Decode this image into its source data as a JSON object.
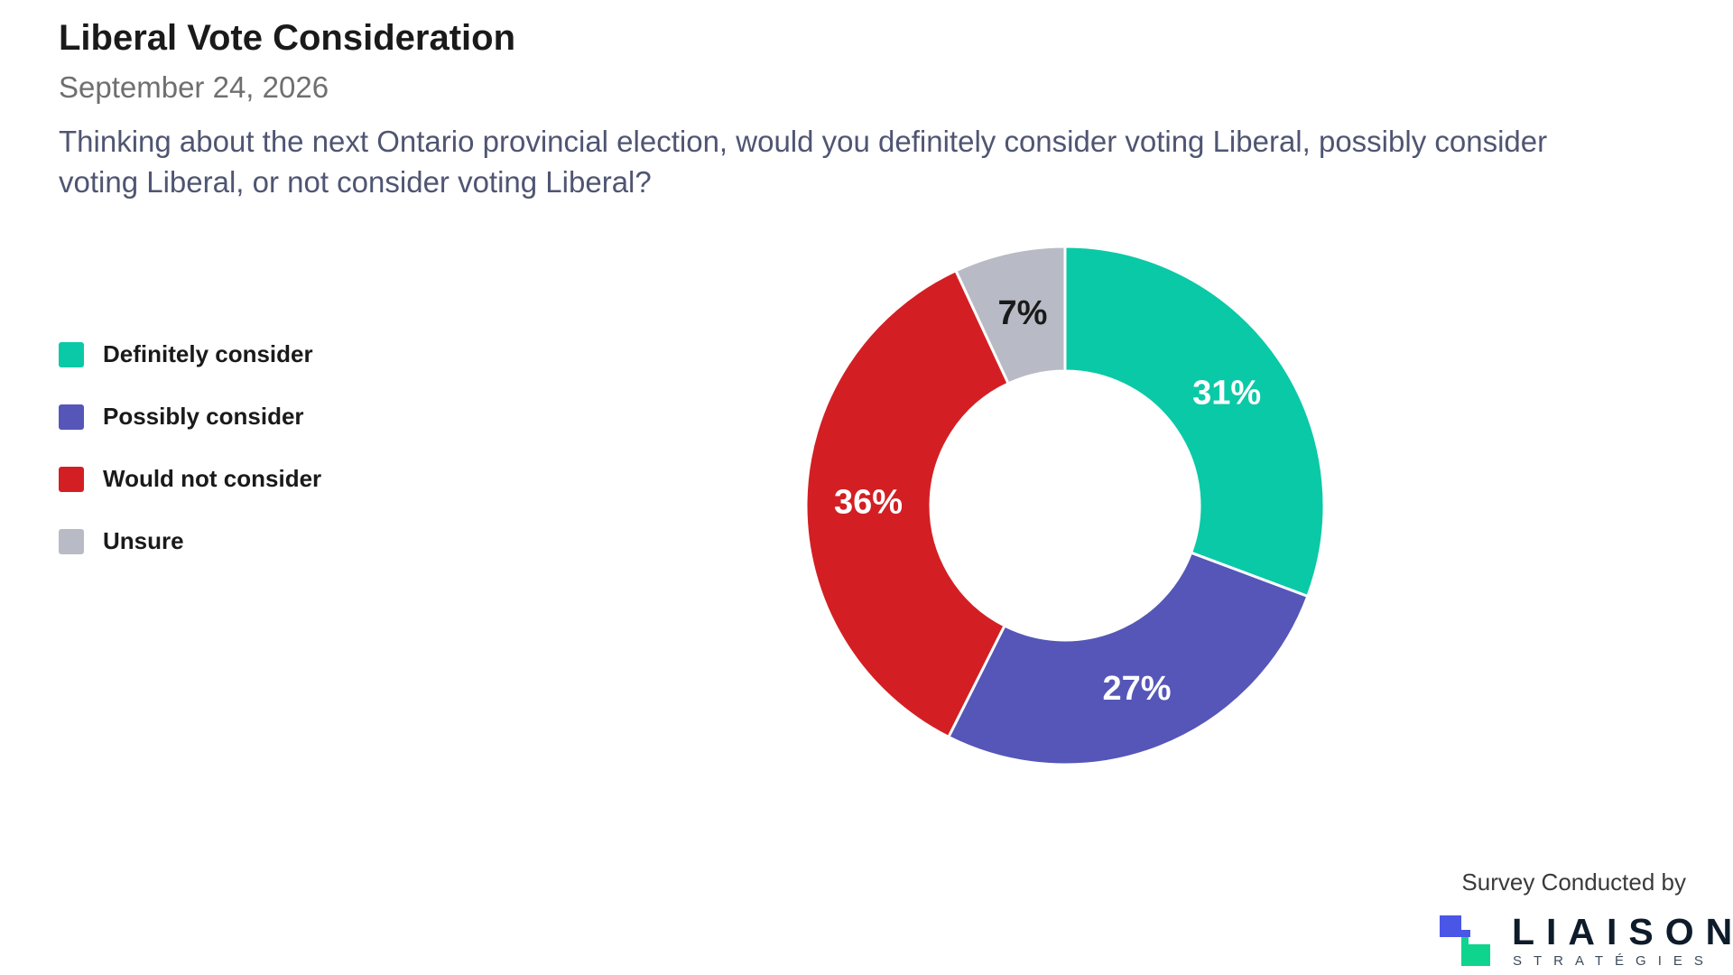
{
  "header": {
    "title": "Liberal Vote Consideration",
    "date": "September 24, 2026",
    "question": "Thinking about the next Ontario provincial election, would you definitely consider voting Liberal, possibly consider voting Liberal, or not consider voting Liberal?"
  },
  "chart_data": {
    "type": "pie",
    "variant": "donut",
    "title": "Liberal Vote Consideration",
    "categories": [
      "Definitely consider",
      "Possibly consider",
      "Would not consider",
      "Unsure"
    ],
    "values": [
      31,
      27,
      36,
      7
    ],
    "labels": [
      "31%",
      "27%",
      "36%",
      "7%"
    ],
    "colors": [
      "#0ac9a6",
      "#5556b8",
      "#d31f23",
      "#b8bbc5"
    ],
    "label_colors": [
      "#ffffff",
      "#ffffff",
      "#ffffff",
      "#1a1a1a"
    ],
    "legend_position": "left"
  },
  "legend": {
    "items": [
      {
        "label": "Definitely consider",
        "color": "#0ac9a6"
      },
      {
        "label": "Possibly consider",
        "color": "#5556b8"
      },
      {
        "label": "Would not consider",
        "color": "#d31f23"
      },
      {
        "label": "Unsure",
        "color": "#b8bbc5"
      }
    ]
  },
  "footer": {
    "credit": "Survey Conducted by",
    "logo_name": "LIAISON",
    "logo_sub": "STRATÉGIES",
    "logo_colors": [
      "#4a56e6",
      "#0fd48d"
    ]
  }
}
